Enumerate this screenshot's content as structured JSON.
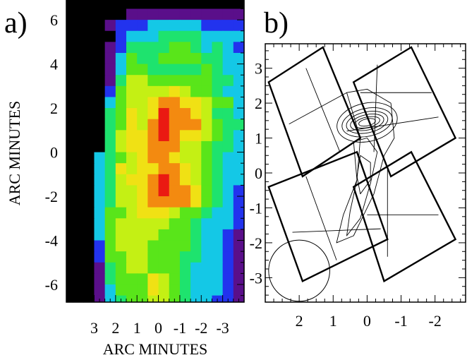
{
  "panels": {
    "a": {
      "label": "a)"
    },
    "b": {
      "label": "b)"
    }
  },
  "chart_data": [
    {
      "type": "heatmap",
      "panel": "a)",
      "xlabel": "ARC MINUTES",
      "ylabel": "ARC MINUTES",
      "xlim": [
        4.3,
        -4.0
      ],
      "ylim": [
        -6.8,
        6.9
      ],
      "x_ticks": [
        3,
        2,
        1,
        0,
        -1,
        -2,
        -3
      ],
      "x_tick_labels": [
        "3",
        "2",
        "1",
        "0",
        "-1",
        "-2",
        "-3"
      ],
      "y_ticks": [
        6,
        4,
        2,
        0,
        -2,
        -4,
        -6
      ],
      "y_tick_labels": [
        "6",
        "4",
        "2",
        "0",
        "-2",
        "-4",
        "-6"
      ],
      "grid": false,
      "colormap": "rainbow (black-purple-blue-cyan-green-yellow-orange-red)",
      "pixel_size_arcmin": 0.5,
      "columns_x_arcmin_start": 4.25,
      "rows_y_arcmin_start": 6.75,
      "grid_rows": [
        "000000000000000000000",
        "000000111111111110000",
        "000012223333322220000",
        "000002333444433332100",
        "000012444455434322000",
        "000013544555544332000",
        "000013554444454332000",
        "000014665555554432000",
        "000025666676554332000",
        "000035667887765532000",
        "000045767988764432000",
        "000045768988865442000",
        "000046778987765432000",
        "000046778886654432000",
        "000345678876654331100",
        "000347677887654331100",
        "000346778987654331100",
        "000346678988754321100",
        "000346678888754321100",
        "000355677765543321100",
        "000356666655433321100",
        "000356666555433211100",
        "000256665555433211100",
        "000255665554433211100",
        "000145665554333211100",
        "000145557654333211100",
        "000135557654333211100",
        "000134556654332211100",
        "000124455554332211000",
        "000013455543321111000",
        "000003445543321111000",
        "000002445543332110000",
        "000001445543322110000",
        "000001445533221100000",
        "000001345432221100000",
        "000000345522200000000",
        "000000123432100000000",
        "000000012100000000000",
        "000000001100000000000",
        "000000000000000000000"
      ]
    },
    {
      "type": "scatter",
      "panel": "b)",
      "xlim": [
        3.0,
        -2.9
      ],
      "ylim": [
        -3.7,
        3.7
      ],
      "x_ticks": [
        2,
        1,
        0,
        -1,
        -2
      ],
      "x_tick_labels": [
        "2",
        "1",
        "0",
        "-1",
        "-2"
      ],
      "y_ticks": [
        3,
        2,
        1,
        0,
        -1,
        -2,
        -3
      ],
      "y_tick_labels": [
        "3",
        "2",
        "1",
        "0",
        "-1",
        "-2",
        "-3"
      ],
      "grid": false,
      "footprints": [
        {
          "corners": [
            [
              2.9,
              2.6
            ],
            [
              1.3,
              3.6
            ],
            [
              0.2,
              1.0
            ],
            [
              1.9,
              -0.1
            ]
          ]
        },
        {
          "corners": [
            [
              0.4,
              2.6
            ],
            [
              -1.3,
              3.6
            ],
            [
              -2.6,
              1.0
            ],
            [
              -0.7,
              -0.1
            ]
          ]
        },
        {
          "corners": [
            [
              2.9,
              -0.4
            ],
            [
              0.3,
              0.6
            ],
            [
              -0.6,
              -1.9
            ],
            [
              1.9,
              -3.1
            ]
          ]
        },
        {
          "corners": [
            [
              0.4,
              -0.4
            ],
            [
              -1.3,
              0.6
            ],
            [
              -2.6,
              -1.9
            ],
            [
              -0.5,
              -3.1
            ]
          ]
        }
      ],
      "inner_grid_lines": [
        [
          [
            2.3,
            1.4
          ],
          [
            0.6,
            2.3
          ]
        ],
        [
          [
            1.8,
            3.0
          ],
          [
            0.8,
            0.6
          ]
        ],
        [
          [
            0.2,
            2.3
          ],
          [
            -1.9,
            2.3
          ]
        ],
        [
          [
            0.6,
            1.2
          ],
          [
            -2.1,
            1.6
          ]
        ],
        [
          [
            -0.3,
            3.1
          ],
          [
            -0.2,
            0.6
          ]
        ],
        [
          [
            2.2,
            -1.7
          ],
          [
            -0.4,
            -1.6
          ]
        ],
        [
          [
            1.8,
            -0.1
          ],
          [
            0.9,
            -2.5
          ]
        ],
        [
          [
            0.0,
            -1.2
          ],
          [
            -2.1,
            -1.2
          ]
        ],
        [
          [
            -0.6,
            0.1
          ],
          [
            -0.6,
            -2.4
          ]
        ]
      ],
      "contour_center": [
        0.0,
        1.45
      ],
      "contours": [
        {
          "rx": 0.25,
          "ry": 0.1
        },
        {
          "rx": 0.38,
          "ry": 0.15
        },
        {
          "rx": 0.5,
          "ry": 0.22
        },
        {
          "rx": 0.62,
          "ry": 0.3
        },
        {
          "rx": 0.75,
          "ry": 0.4
        },
        {
          "rx": 0.9,
          "ry": 0.55
        }
      ],
      "extended_contours": [
        [
          [
            0.6,
            2.3
          ],
          [
            0.2,
            1.0
          ],
          [
            0.3,
            -0.2
          ],
          [
            0.7,
            -1.2
          ],
          [
            0.9,
            -2.0
          ],
          [
            0.4,
            -1.8
          ],
          [
            -0.2,
            -0.6
          ],
          [
            -0.5,
            0.5
          ],
          [
            -0.8,
            1.0
          ],
          [
            -0.7,
            2.0
          ],
          [
            0.0,
            2.4
          ],
          [
            0.6,
            2.3
          ]
        ],
        [
          [
            0.4,
            0.9
          ],
          [
            0.3,
            -0.2
          ],
          [
            0.5,
            -1.1
          ],
          [
            0.6,
            -1.8
          ],
          [
            0.2,
            -1.3
          ],
          [
            -0.1,
            -0.3
          ],
          [
            -0.3,
            0.6
          ],
          [
            0.0,
            1.0
          ],
          [
            0.4,
            0.9
          ]
        ],
        [
          [
            0.2,
            0.5
          ],
          [
            0.3,
            -0.1
          ],
          [
            0.2,
            -0.6
          ],
          [
            -0.1,
            -0.2
          ],
          [
            -0.1,
            0.3
          ],
          [
            0.2,
            0.5
          ]
        ]
      ],
      "beam_circle": {
        "center": [
          2.0,
          -2.8
        ],
        "radius": 0.9
      }
    }
  ]
}
